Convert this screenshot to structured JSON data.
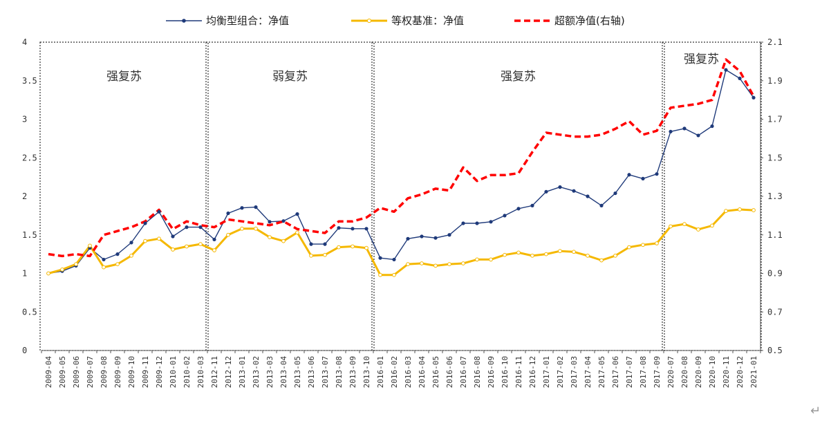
{
  "chart_data": {
    "type": "line",
    "title": "",
    "legend_position": "top",
    "grid": false,
    "x": [
      "2009-04",
      "2009-05",
      "2009-06",
      "2009-07",
      "2009-08",
      "2009-09",
      "2009-10",
      "2009-11",
      "2009-12",
      "2010-01",
      "2010-02",
      "2010-03",
      "2012-11",
      "2012-12",
      "2013-01",
      "2013-02",
      "2013-03",
      "2013-04",
      "2013-05",
      "2013-06",
      "2013-07",
      "2013-08",
      "2013-09",
      "2013-10",
      "2016-01",
      "2016-02",
      "2016-03",
      "2016-04",
      "2016-05",
      "2016-06",
      "2016-07",
      "2016-08",
      "2016-09",
      "2016-10",
      "2016-11",
      "2016-12",
      "2017-01",
      "2017-02",
      "2017-03",
      "2017-04",
      "2017-05",
      "2017-06",
      "2017-07",
      "2017-08",
      "2017-09",
      "2020-07",
      "2020-08",
      "2020-09",
      "2020-10",
      "2020-11",
      "2020-12",
      "2021-01"
    ],
    "x_tick_labels": [
      "2009-04",
      "2009-05",
      "2009-06",
      "2009-07",
      "2009-08",
      "2009-09",
      "2009-10",
      "2009-11",
      "2009-12",
      "2010-01",
      "2010-02",
      "2010-03",
      "2012-11",
      "2012-12",
      "2013-01",
      "2013-02",
      "2013-03",
      "2013-04",
      "2013-05",
      "2013-06",
      "2013-07",
      "2013-08",
      "2013-09",
      "2013-10",
      "2016-01",
      "2016-02",
      "2016-03",
      "2016-04",
      "2016-05",
      "2016-06",
      "2016-07",
      "2016-08",
      "2016-09",
      "2016-10",
      "2016-11",
      "2016-12",
      "2017-01",
      "2017-02",
      "2017-03",
      "2017-04",
      "2017-05",
      "2017-06",
      "2017-07",
      "2017-08",
      "2017-09",
      "2020-07",
      "2020-08",
      "2020-09",
      "2020-10",
      "2020-11",
      "2020-12",
      "2021-01"
    ],
    "y_left": {
      "min": 0,
      "max": 4,
      "ticks": [
        "0",
        "0.5",
        "1",
        "1.5",
        "2",
        "2.5",
        "3",
        "3.5",
        "4"
      ]
    },
    "y_right": {
      "min": 0.5,
      "max": 2.1,
      "ticks": [
        "0.5",
        "0.7",
        "0.9",
        "1.1",
        "1.3",
        "1.5",
        "1.7",
        "1.9",
        "2.1"
      ]
    },
    "series": [
      {
        "name": "均衡型组合：净值",
        "axis": "left",
        "color": "#1f3a7a",
        "style": "line-dots",
        "values": [
          1.0,
          1.03,
          1.1,
          1.33,
          1.18,
          1.25,
          1.4,
          1.65,
          1.8,
          1.48,
          1.6,
          1.6,
          1.44,
          1.78,
          1.85,
          1.86,
          1.67,
          1.68,
          1.77,
          1.38,
          1.38,
          1.59,
          1.58,
          1.58,
          1.2,
          1.18,
          1.45,
          1.48,
          1.46,
          1.5,
          1.65,
          1.65,
          1.67,
          1.75,
          1.84,
          1.88,
          2.06,
          2.12,
          2.07,
          2.0,
          1.88,
          2.04,
          2.28,
          2.23,
          2.29,
          2.84,
          2.88,
          2.79,
          2.91,
          3.64,
          3.53,
          3.28
        ]
      },
      {
        "name": "等权基准：净值",
        "axis": "left",
        "color": "#f5b800",
        "style": "line-hollow-dots",
        "values": [
          1.0,
          1.05,
          1.12,
          1.36,
          1.08,
          1.12,
          1.23,
          1.42,
          1.45,
          1.31,
          1.35,
          1.38,
          1.3,
          1.5,
          1.58,
          1.58,
          1.47,
          1.42,
          1.53,
          1.23,
          1.24,
          1.34,
          1.35,
          1.33,
          0.98,
          0.98,
          1.12,
          1.13,
          1.1,
          1.12,
          1.13,
          1.18,
          1.18,
          1.24,
          1.27,
          1.23,
          1.25,
          1.29,
          1.28,
          1.23,
          1.17,
          1.23,
          1.34,
          1.37,
          1.39,
          1.61,
          1.64,
          1.57,
          1.62,
          1.81,
          1.83,
          1.82
        ]
      },
      {
        "name": "超额净值(右轴)",
        "axis": "right",
        "color": "#ff0000",
        "style": "dashed",
        "values": [
          1.0,
          0.99,
          1.0,
          0.99,
          1.1,
          1.12,
          1.14,
          1.17,
          1.23,
          1.13,
          1.17,
          1.15,
          1.14,
          1.18,
          1.17,
          1.16,
          1.15,
          1.17,
          1.13,
          1.12,
          1.11,
          1.17,
          1.17,
          1.19,
          1.24,
          1.22,
          1.29,
          1.31,
          1.34,
          1.33,
          1.45,
          1.38,
          1.41,
          1.41,
          1.42,
          1.53,
          1.63,
          1.62,
          1.61,
          1.61,
          1.62,
          1.65,
          1.69,
          1.62,
          1.64,
          1.76,
          1.77,
          1.78,
          1.8,
          2.01,
          1.95,
          1.82
        ]
      }
    ],
    "phases": [
      {
        "label": "强复苏",
        "start": 0,
        "end": 11
      },
      {
        "label": "弱复苏",
        "start": 12,
        "end": 23
      },
      {
        "label": "强复苏",
        "start": 24,
        "end": 44
      },
      {
        "label": "强复苏",
        "start": 45,
        "end": 51
      }
    ]
  },
  "page": {
    "return_mark": "↵"
  }
}
